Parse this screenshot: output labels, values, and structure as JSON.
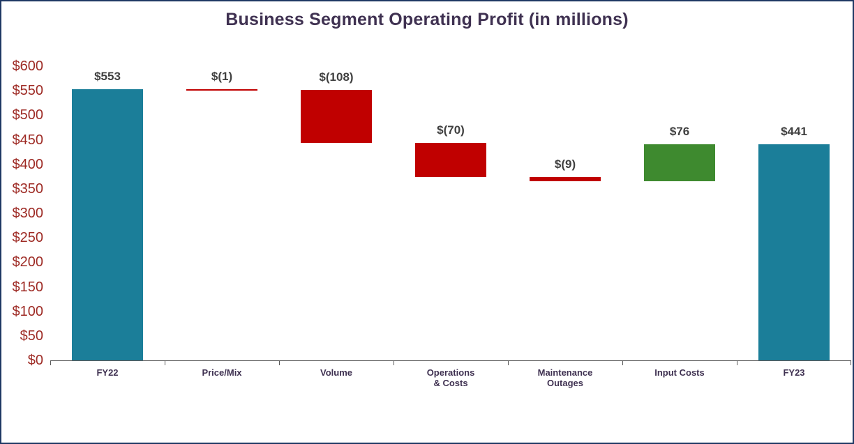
{
  "chart_data": {
    "type": "waterfall",
    "title": "Business Segment Operating Profit (in millions)",
    "categories": [
      "FY22",
      "Price/Mix",
      "Volume",
      "Operations\n& Costs",
      "Maintenance\nOutages",
      "Input Costs",
      "FY23"
    ],
    "values": [
      553,
      -1,
      -108,
      -70,
      -9,
      76,
      441
    ],
    "labels": [
      "$553",
      "$(1)",
      "$(108)",
      "$(70)",
      "$(9)",
      "$76",
      "$441"
    ],
    "bar_types": [
      "total",
      "decrease",
      "decrease",
      "decrease",
      "decrease",
      "increase",
      "total"
    ],
    "cumulative": [
      553,
      552,
      444,
      374,
      365,
      441,
      441
    ],
    "ylim": [
      0,
      600
    ],
    "ytick_step": 50,
    "ytick_labels": [
      "$0",
      "$50",
      "$100",
      "$150",
      "$200",
      "$250",
      "$300",
      "$350",
      "$400",
      "$450",
      "$500",
      "$550",
      "$600"
    ],
    "grid": false,
    "legend": false,
    "colors": {
      "total": "#1B7E99",
      "decrease": "#C00000",
      "increase": "#3E8A2F",
      "title_text": "#3F3151",
      "y_axis_text": "#9E2B25",
      "x_axis_text": "#3F3151",
      "value_label_text": "#404040",
      "border": "#1F3864",
      "axis_line": "#595959"
    }
  }
}
